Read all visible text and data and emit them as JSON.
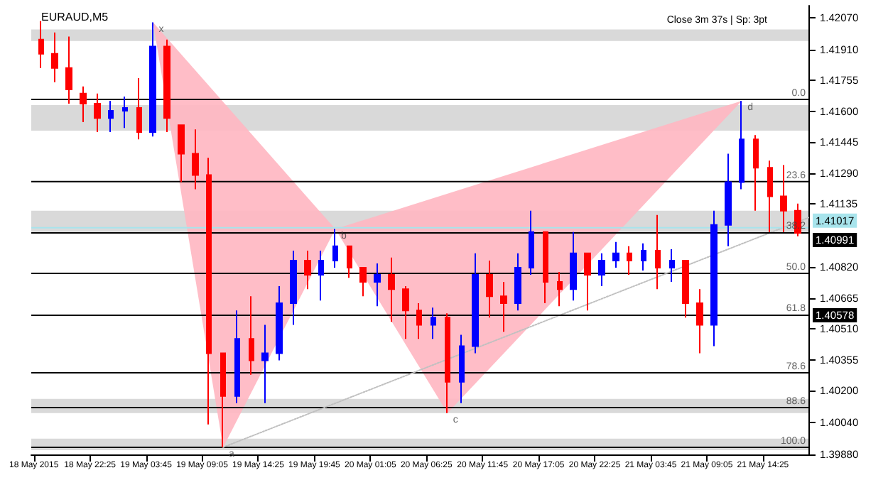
{
  "chart_data": {
    "type": "candlestick",
    "title": "EURAUD,M5",
    "annotations": [
      "Close 3m 37s | Sp: 3pt",
      {
        "text": "x",
        "x": "2015-05-19T04:25",
        "y": 1.42046
      },
      {
        "text": "a",
        "x": "2015-05-19T11:05",
        "y": 1.39916
      },
      {
        "text": "b",
        "x": "2015-05-19T21:45",
        "y": 1.4101
      },
      {
        "text": "c",
        "x": "2015-05-20T08:25",
        "y": 1.40087
      },
      {
        "text": "d",
        "x": "2015-05-21T12:25",
        "y": 1.41653
      },
      {
        "text": "0.0",
        "x": "2015-05-21T18:45",
        "y": 1.4166
      },
      {
        "text": "23.6",
        "x": "2015-05-21T18:45",
        "y": 1.41248
      },
      {
        "text": "38.2",
        "x": "2015-05-21T18:45",
        "y": 1.40994
      },
      {
        "text": "50.0",
        "x": "2015-05-21T18:45",
        "y": 1.40788
      },
      {
        "text": "61.8",
        "x": "2015-05-21T18:45",
        "y": 1.40582
      },
      {
        "text": "78.6",
        "x": "2015-05-21T18:45",
        "y": 1.40289
      },
      {
        "text": "88.6",
        "x": "2015-05-21T18:45",
        "y": 1.40115
      },
      {
        "text": "100.0",
        "x": "2015-05-21T18:45",
        "y": 1.39916
      }
    ],
    "xlim": [
      "2015-05-18T16:50",
      "2015-05-21T18:45"
    ],
    "xticks": [
      {
        "value": "2015-05-18T17:05",
        "label": "18 May 2015"
      },
      {
        "value": "2015-05-18T22:25",
        "label": "18 May 22:25"
      },
      {
        "value": "2015-05-19T03:45",
        "label": "19 May 03:45"
      },
      {
        "value": "2015-05-19T09:05",
        "label": "19 May 09:05"
      },
      {
        "value": "2015-05-19T14:25",
        "label": "19 May 14:25"
      },
      {
        "value": "2015-05-19T19:45",
        "label": "19 May 19:45"
      },
      {
        "value": "2015-05-20T01:05",
        "label": "20 May 01:05"
      },
      {
        "value": "2015-05-20T06:25",
        "label": "20 May 06:25"
      },
      {
        "value": "2015-05-20T11:45",
        "label": "20 May 11:45"
      },
      {
        "value": "2015-05-20T17:05",
        "label": "20 May 17:05"
      },
      {
        "value": "2015-05-20T22:25",
        "label": "20 May 22:25"
      },
      {
        "value": "2015-05-21T03:45",
        "label": "21 May 03:45"
      },
      {
        "value": "2015-05-21T09:05",
        "label": "21 May 09:05"
      },
      {
        "value": "2015-05-21T14:25",
        "label": "21 May 14:25"
      }
    ],
    "ylim": [
      1.3988,
      1.4213
    ],
    "yticks": [
      {
        "value": 1.3988,
        "label": "1.39880"
      },
      {
        "value": 1.4004,
        "label": "1.40040"
      },
      {
        "value": 1.402,
        "label": "1.40200"
      },
      {
        "value": 1.40355,
        "label": "1.40355"
      },
      {
        "value": 1.4051,
        "label": "1.40510"
      },
      {
        "value": 1.40665,
        "label": "1.40665"
      },
      {
        "value": 1.4082,
        "label": "1.40820"
      },
      {
        "value": 1.41135,
        "label": "1.41135"
      },
      {
        "value": 1.4129,
        "label": "1.41290"
      },
      {
        "value": 1.41445,
        "label": "1.41445"
      },
      {
        "value": 1.416,
        "label": "1.41600"
      },
      {
        "value": 1.41755,
        "label": "1.41755"
      },
      {
        "value": 1.4191,
        "label": "1.41910"
      },
      {
        "value": 1.4207,
        "label": "1.42070"
      }
    ],
    "series": [
      {
        "type": "candlestick",
        "x": [
          "2015-05-18T17:45",
          "2015-05-18T19:05",
          "2015-05-18T20:25",
          "2015-05-18T21:45",
          "2015-05-18T23:05",
          "2015-05-19T00:25",
          "2015-05-19T01:45",
          "2015-05-19T03:05",
          "2015-05-19T04:25",
          "2015-05-19T05:45",
          "2015-05-19T07:05",
          "2015-05-19T08:25",
          "2015-05-19T09:45",
          "2015-05-19T11:05",
          "2015-05-19T12:25",
          "2015-05-19T13:45",
          "2015-05-19T15:05",
          "2015-05-19T16:25",
          "2015-05-19T17:45",
          "2015-05-19T19:05",
          "2015-05-19T20:25",
          "2015-05-19T21:45",
          "2015-05-19T23:05",
          "2015-05-20T00:25",
          "2015-05-20T01:45",
          "2015-05-20T03:05",
          "2015-05-20T04:25",
          "2015-05-20T05:45",
          "2015-05-20T07:05",
          "2015-05-20T08:25",
          "2015-05-20T09:45",
          "2015-05-20T11:05",
          "2015-05-20T12:25",
          "2015-05-20T13:45",
          "2015-05-20T15:05",
          "2015-05-20T16:25",
          "2015-05-20T17:45",
          "2015-05-20T19:05",
          "2015-05-20T20:25",
          "2015-05-20T21:45",
          "2015-05-20T23:05",
          "2015-05-21T00:25",
          "2015-05-21T01:45",
          "2015-05-21T03:05",
          "2015-05-21T04:25",
          "2015-05-21T05:45",
          "2015-05-21T07:05",
          "2015-05-21T08:25",
          "2015-05-21T09:45",
          "2015-05-21T11:05",
          "2015-05-21T12:25",
          "2015-05-21T13:45",
          "2015-05-21T15:05",
          "2015-05-21T16:25",
          "2015-05-21T17:45"
        ],
        "ohlc": [
          [
            1.4196,
            1.42053,
            1.41818,
            1.41889
          ],
          [
            1.41889,
            1.41996,
            1.41746,
            1.41818
          ],
          [
            1.41818,
            1.41975,
            1.41639,
            1.4171
          ],
          [
            1.41689,
            1.41725,
            1.41546,
            1.41639
          ],
          [
            1.41639,
            1.41689,
            1.41496,
            1.41567
          ],
          [
            1.41567,
            1.41653,
            1.41496,
            1.41603
          ],
          [
            1.41603,
            1.41674,
            1.41517,
            1.41617
          ],
          [
            1.41617,
            1.41767,
            1.4146,
            1.41496
          ],
          [
            1.41496,
            1.42046,
            1.41474,
            1.41925
          ],
          [
            1.41925,
            1.4196,
            1.41496,
            1.41567
          ],
          [
            1.41531,
            1.41531,
            1.41245,
            1.41388
          ],
          [
            1.41388,
            1.4151,
            1.4121,
            1.41281
          ],
          [
            1.41281,
            1.41367,
            1.4003,
            1.40387
          ],
          [
            1.40387,
            1.40387,
            1.39916,
            1.40173
          ],
          [
            1.40173,
            1.40602,
            1.40137,
            1.40459
          ],
          [
            1.40459,
            1.40673,
            1.4028,
            1.40352
          ],
          [
            1.40352,
            1.4053,
            1.40137,
            1.40387
          ],
          [
            1.40387,
            1.40724,
            1.40352,
            1.40638
          ],
          [
            1.40638,
            1.40902,
            1.4053,
            1.40852
          ],
          [
            1.40852,
            1.40902,
            1.40709,
            1.40781
          ],
          [
            1.40781,
            1.40902,
            1.40652,
            1.40852
          ],
          [
            1.40852,
            1.4101,
            1.40816,
            1.40924
          ],
          [
            1.40924,
            1.40924,
            1.40766,
            1.40816
          ],
          [
            1.40816,
            1.40816,
            1.40673,
            1.40745
          ],
          [
            1.40745,
            1.40838,
            1.40623,
            1.40781
          ],
          [
            1.40781,
            1.40867,
            1.40545,
            1.40709
          ],
          [
            1.40709,
            1.40724,
            1.40459,
            1.40602
          ],
          [
            1.40602,
            1.40638,
            1.40459,
            1.4053
          ],
          [
            1.4053,
            1.40616,
            1.40459,
            1.40566
          ],
          [
            1.40566,
            1.40588,
            1.40087,
            1.40244
          ],
          [
            1.40244,
            1.4048,
            1.40137,
            1.40423
          ],
          [
            1.40423,
            1.40888,
            1.40387,
            1.40781
          ],
          [
            1.40781,
            1.40852,
            1.40566,
            1.40673
          ],
          [
            1.40673,
            1.40745,
            1.40495,
            1.40638
          ],
          [
            1.40638,
            1.40888,
            1.40602,
            1.40816
          ],
          [
            1.40816,
            1.41102,
            1.40781,
            1.40995
          ],
          [
            1.40995,
            1.40995,
            1.40638,
            1.40745
          ],
          [
            1.40745,
            1.40795,
            1.40623,
            1.40709
          ],
          [
            1.40709,
            1.40995,
            1.40652,
            1.40888
          ],
          [
            1.40888,
            1.40888,
            1.40602,
            1.40781
          ],
          [
            1.40781,
            1.40888,
            1.40724,
            1.40852
          ],
          [
            1.40852,
            1.40945,
            1.40816,
            1.40888
          ],
          [
            1.40888,
            1.40924,
            1.40781,
            1.40852
          ],
          [
            1.40852,
            1.40938,
            1.40802,
            1.40902
          ],
          [
            1.40902,
            1.41081,
            1.40709,
            1.40816
          ],
          [
            1.40816,
            1.40909,
            1.40745,
            1.40852
          ],
          [
            1.40852,
            1.40852,
            1.40566,
            1.40638
          ],
          [
            1.40638,
            1.40709,
            1.40387,
            1.4053
          ],
          [
            1.4053,
            1.41102,
            1.40423,
            1.41031
          ],
          [
            1.41031,
            1.41388,
            1.40924,
            1.41245
          ],
          [
            1.41245,
            1.41653,
            1.4121,
            1.4146
          ],
          [
            1.4146,
            1.41481,
            1.41102,
            1.41317
          ],
          [
            1.41317,
            1.41353,
            1.40995,
            1.41174
          ],
          [
            1.41174,
            1.41331,
            1.40995,
            1.41102
          ],
          [
            1.41102,
            1.41138,
            1.40974,
            1.40991
          ]
        ],
        "colors": [
          "#ff0000",
          "#ff0000",
          "#ff0000",
          "#ff0000",
          "#ff0000",
          "#0000ff",
          "#0000ff",
          "#ff0000",
          "#0000ff",
          "#ff0000",
          "#ff0000",
          "#ff0000",
          "#ff0000",
          "#ff0000",
          "#0000ff",
          "#ff0000",
          "#0000ff",
          "#0000ff",
          "#0000ff",
          "#ff0000",
          "#0000ff",
          "#0000ff",
          "#ff0000",
          "#ff0000",
          "#0000ff",
          "#ff0000",
          "#ff0000",
          "#ff0000",
          "#0000ff",
          "#ff0000",
          "#0000ff",
          "#0000ff",
          "#ff0000",
          "#ff0000",
          "#0000ff",
          "#0000ff",
          "#ff0000",
          "#ff0000",
          "#0000ff",
          "#ff0000",
          "#0000ff",
          "#0000ff",
          "#ff0000",
          "#0000ff",
          "#ff0000",
          "#0000ff",
          "#ff0000",
          "#ff0000",
          "#0000ff",
          "#0000ff",
          "#0000ff",
          "#ff0000",
          "#ff0000",
          "#ff0000",
          "#ff0000"
        ]
      },
      {
        "type": "line",
        "x": [
          "2015-05-19T11:05",
          "2015-05-21T18:45"
        ],
        "values": [
          1.39916,
          1.41067
        ],
        "color": "#c0c0c0",
        "line_style": "dotted"
      },
      {
        "type": "area",
        "x": [
          "2015-05-19T04:25",
          "2015-05-19T11:05",
          "2015-05-19T21:45"
        ],
        "values": [
          1.42046,
          1.39916,
          1.4101
        ],
        "color": "#ffb6c1"
      },
      {
        "type": "area",
        "x": [
          "2015-05-19T21:45",
          "2015-05-20T08:25",
          "2015-05-21T12:25"
        ],
        "values": [
          1.4101,
          1.40087,
          1.41653
        ],
        "color": "#ffb6c1"
      }
    ],
    "ref_lines": [
      {
        "axis": "y",
        "value": 1.4166
      },
      {
        "axis": "y",
        "value": 1.41248
      },
      {
        "axis": "y",
        "value": 1.40788
      },
      {
        "axis": "y",
        "value": 1.40289
      },
      {
        "axis": "y",
        "value": 1.40115
      },
      {
        "axis": "y",
        "value": 1.39916
      },
      {
        "axis": "y",
        "value": 1.41017,
        "label": "1.41017",
        "color": "#a8e4ec"
      },
      {
        "axis": "y",
        "value": 1.40991,
        "label": "1.40991",
        "color": "#000000"
      },
      {
        "axis": "y",
        "value": 1.40578,
        "label": "1.40578",
        "color": "#000000"
      }
    ],
    "bands": [
      {
        "axis": "y",
        "from": 1.41953,
        "to": 1.42011,
        "color": "#d9d9d9"
      },
      {
        "axis": "y",
        "from": 1.41503,
        "to": 1.41632,
        "color": "#d9d9d9"
      },
      {
        "axis": "y",
        "from": 1.40995,
        "to": 1.41102,
        "color": "#d9d9d9"
      },
      {
        "axis": "y",
        "from": 1.40087,
        "to": 1.40159,
        "color": "#d9d9d9"
      },
      {
        "axis": "y",
        "from": 1.39901,
        "to": 1.39959,
        "color": "#d9d9d9"
      }
    ]
  }
}
